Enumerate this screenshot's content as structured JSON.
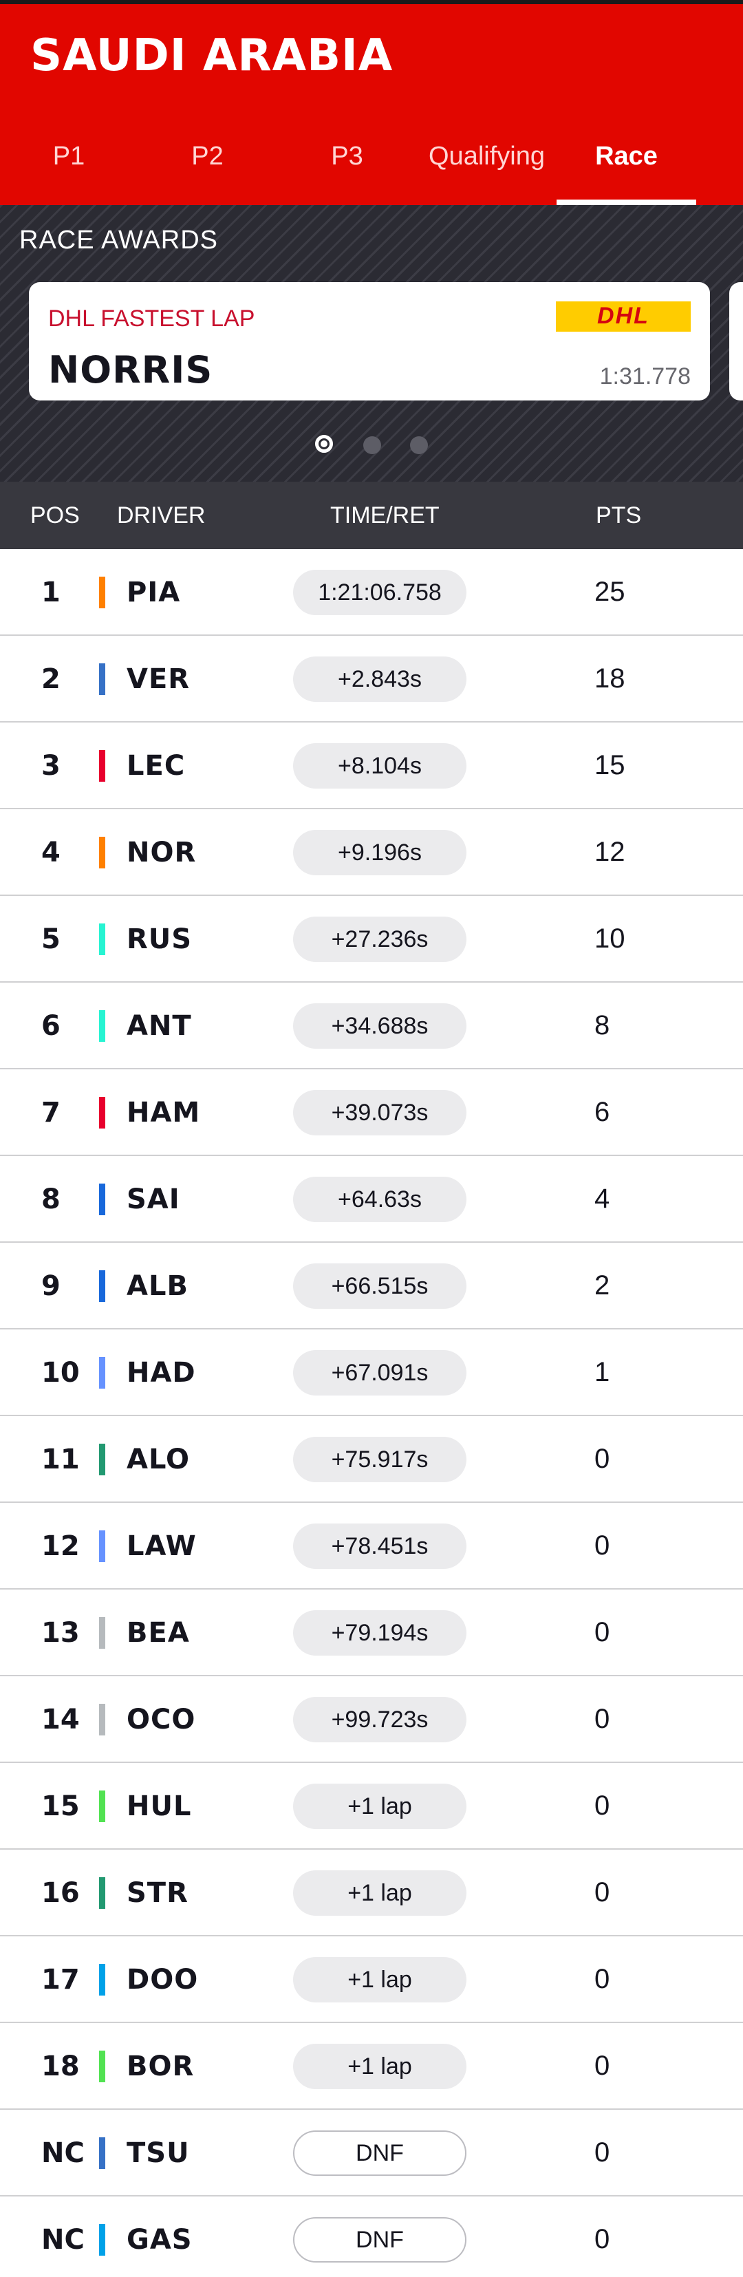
{
  "header": {
    "title": "SAUDI ARABIA",
    "tabs": [
      {
        "label": "P1"
      },
      {
        "label": "P2"
      },
      {
        "label": "P3"
      },
      {
        "label": "Qualifying"
      },
      {
        "label": "Race"
      }
    ],
    "active_tab": "Race",
    "background_color": "#e10600"
  },
  "awards": {
    "title": "RACE AWARDS",
    "card": {
      "label": "DHL FASTEST LAP",
      "logo": "DHL",
      "driver": "NORRIS",
      "time": "1:31.778"
    },
    "carousel_pages": 3,
    "active_page": 1
  },
  "table": {
    "columns": {
      "pos": "POS",
      "driver": "DRIVER",
      "time": "TIME/RET",
      "pts": "PTS"
    },
    "rows": [
      {
        "pos": "1",
        "driver": "PIA",
        "time": "1:21:06.758",
        "pts": "25",
        "team_color": "#ff8000"
      },
      {
        "pos": "2",
        "driver": "VER",
        "time": "+2.843s",
        "pts": "18",
        "team_color": "#3671c6"
      },
      {
        "pos": "3",
        "driver": "LEC",
        "time": "+8.104s",
        "pts": "15",
        "team_color": "#e8002d"
      },
      {
        "pos": "4",
        "driver": "NOR",
        "time": "+9.196s",
        "pts": "12",
        "team_color": "#ff8000"
      },
      {
        "pos": "5",
        "driver": "RUS",
        "time": "+27.236s",
        "pts": "10",
        "team_color": "#27f4d2"
      },
      {
        "pos": "6",
        "driver": "ANT",
        "time": "+34.688s",
        "pts": "8",
        "team_color": "#27f4d2"
      },
      {
        "pos": "7",
        "driver": "HAM",
        "time": "+39.073s",
        "pts": "6",
        "team_color": "#e8002d"
      },
      {
        "pos": "8",
        "driver": "SAI",
        "time": "+64.63s",
        "pts": "4",
        "team_color": "#1868db"
      },
      {
        "pos": "9",
        "driver": "ALB",
        "time": "+66.515s",
        "pts": "2",
        "team_color": "#1868db"
      },
      {
        "pos": "10",
        "driver": "HAD",
        "time": "+67.091s",
        "pts": "1",
        "team_color": "#6692ff"
      },
      {
        "pos": "11",
        "driver": "ALO",
        "time": "+75.917s",
        "pts": "0",
        "team_color": "#229971"
      },
      {
        "pos": "12",
        "driver": "LAW",
        "time": "+78.451s",
        "pts": "0",
        "team_color": "#6692ff"
      },
      {
        "pos": "13",
        "driver": "BEA",
        "time": "+79.194s",
        "pts": "0",
        "team_color": "#b6babd"
      },
      {
        "pos": "14",
        "driver": "OCO",
        "time": "+99.723s",
        "pts": "0",
        "team_color": "#b6babd"
      },
      {
        "pos": "15",
        "driver": "HUL",
        "time": "+1 lap",
        "pts": "0",
        "team_color": "#52e252"
      },
      {
        "pos": "16",
        "driver": "STR",
        "time": "+1 lap",
        "pts": "0",
        "team_color": "#229971"
      },
      {
        "pos": "17",
        "driver": "DOO",
        "time": "+1 lap",
        "pts": "0",
        "team_color": "#00a1e8"
      },
      {
        "pos": "18",
        "driver": "BOR",
        "time": "+1 lap",
        "pts": "0",
        "team_color": "#52e252"
      },
      {
        "pos": "NC",
        "driver": "TSU",
        "time": "DNF",
        "pts": "0",
        "team_color": "#3671c6"
      },
      {
        "pos": "NC",
        "driver": "GAS",
        "time": "DNF",
        "pts": "0",
        "team_color": "#00a1e8"
      }
    ]
  }
}
